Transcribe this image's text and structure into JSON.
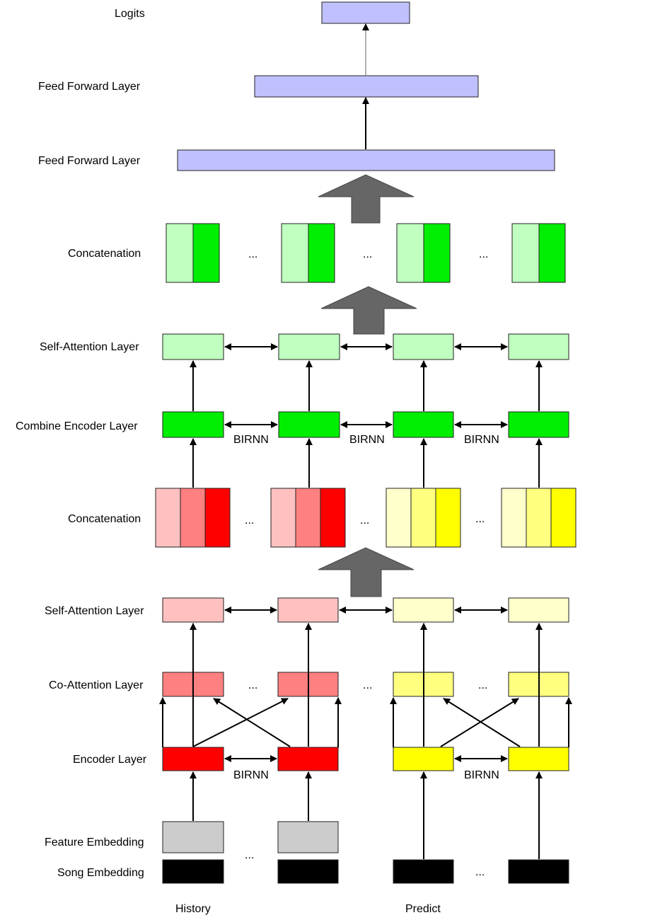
{
  "labels": {
    "logits": "Logits",
    "feed_forward_top": "Feed Forward Layer",
    "feed_forward_bottom": "Feed Forward Layer",
    "concatenation_top": "Concatenation",
    "self_attention_top": "Self-Attention Layer",
    "combine_encoder": "Combine Encoder Layer",
    "concatenation_mid": "Concatenation",
    "self_attention_bottom": "Self-Attention Layer",
    "co_attention": "Co-Attention Layer",
    "encoder": "Encoder Layer",
    "feature_embedding": "Feature Embedding",
    "song_embedding": "Song Embedding",
    "history": "History",
    "predict": "Predict"
  },
  "connectors": {
    "birnn": "BIRNN",
    "ellipsis": "..."
  },
  "colors": {
    "purple": "#c0c0ff",
    "green_light": "#c0ffc0",
    "green": "#00ee00",
    "red_light": "#ffc0c0",
    "red_mid": "#ff8080",
    "red": "#ff0000",
    "yellow_light": "#ffffcc",
    "yellow_mid": "#ffff80",
    "yellow": "#ffff00",
    "gray": "#cccccc",
    "black": "#000000",
    "arrow_gray": "#666666"
  }
}
